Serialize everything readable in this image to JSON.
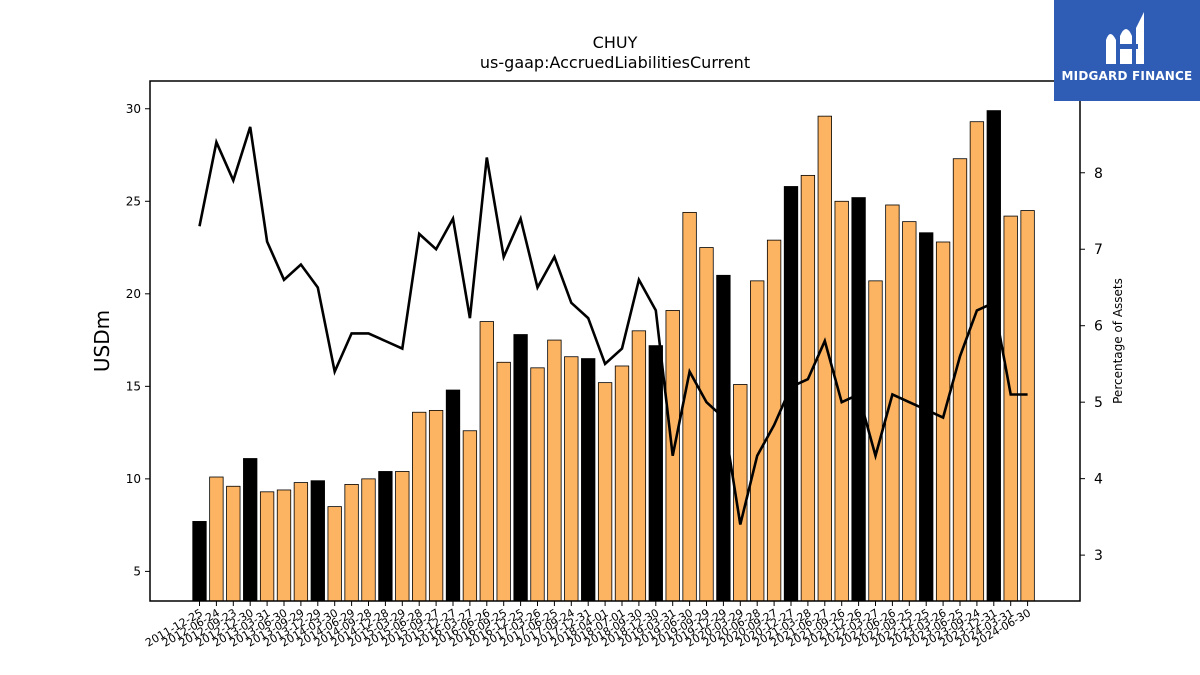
{
  "brand": {
    "name": "MIDGARD FINANCE"
  },
  "colors": {
    "bar_default": "#fdb462",
    "bar_highlight": "#000000",
    "line": "#000000",
    "logo_bg": "#2f5db5"
  },
  "chart_data": {
    "type": "bar",
    "title": "CHUY",
    "subtitle": "us-gaap:AccruedLiabilitiesCurrent",
    "ylabel": "USDm",
    "y2label": "Percentage of Assets",
    "ylim": [
      3.4,
      31.5
    ],
    "y2lim": [
      2.4,
      9.2
    ],
    "yticks": [
      5,
      10,
      15,
      20,
      25,
      30
    ],
    "y2ticks": [
      3,
      4,
      5,
      6,
      7,
      8
    ],
    "categories": [
      "2011-12-25",
      "2012-06-24",
      "2012-09-23",
      "2012-12-30",
      "2013-03-31",
      "2013-06-30",
      "2013-09-29",
      "2013-12-29",
      "2014-03-30",
      "2014-06-29",
      "2014-09-28",
      "2014-12-28",
      "2015-03-29",
      "2015-06-28",
      "2015-09-27",
      "2015-12-27",
      "2016-03-27",
      "2016-06-26",
      "2016-09-25",
      "2016-12-25",
      "2017-03-26",
      "2017-06-25",
      "2017-09-24",
      "2017-12-31",
      "2018-04-01",
      "2018-07-01",
      "2018-09-30",
      "2018-12-30",
      "2019-03-31",
      "2019-06-30",
      "2019-09-29",
      "2019-12-29",
      "2020-03-29",
      "2020-06-28",
      "2020-09-27",
      "2020-12-27",
      "2021-03-28",
      "2021-06-27",
      "2021-09-26",
      "2021-12-26",
      "2022-03-27",
      "2022-06-26",
      "2022-09-25",
      "2022-12-25",
      "2023-03-26",
      "2023-06-25",
      "2023-09-24",
      "2023-12-31",
      "2024-03-31",
      "2024-06-30"
    ],
    "series": [
      {
        "type": "bar",
        "values": [
          7.7,
          10.1,
          9.6,
          11.1,
          9.3,
          9.4,
          9.8,
          9.9,
          8.5,
          9.7,
          10.0,
          10.4,
          10.4,
          13.6,
          13.7,
          14.8,
          12.6,
          18.5,
          16.3,
          17.8,
          16.0,
          17.5,
          16.6,
          16.5,
          15.2,
          16.1,
          18.0,
          17.2,
          19.1,
          24.4,
          22.5,
          21.0,
          15.1,
          20.7,
          22.9,
          25.8,
          26.4,
          29.6,
          25.0,
          25.2,
          20.7,
          24.8,
          23.9,
          23.3,
          22.8,
          27.3,
          29.3,
          29.9,
          24.2,
          24.5
        ],
        "highlight": [
          true,
          false,
          false,
          true,
          false,
          false,
          false,
          true,
          false,
          false,
          false,
          true,
          false,
          false,
          false,
          true,
          false,
          false,
          false,
          true,
          false,
          false,
          false,
          true,
          false,
          false,
          false,
          true,
          false,
          false,
          false,
          true,
          false,
          false,
          false,
          true,
          false,
          false,
          false,
          true,
          false,
          false,
          false,
          true,
          false,
          false,
          false,
          true,
          false,
          false
        ]
      },
      {
        "type": "line",
        "axis": "right",
        "values": [
          7.3,
          8.4,
          7.9,
          8.6,
          7.1,
          6.6,
          6.8,
          6.5,
          5.4,
          5.9,
          5.9,
          5.8,
          5.7,
          7.2,
          7.0,
          7.4,
          6.1,
          8.2,
          6.9,
          7.4,
          6.5,
          6.9,
          6.3,
          6.1,
          5.5,
          5.7,
          6.6,
          6.2,
          4.3,
          5.4,
          5.0,
          4.8,
          3.4,
          4.3,
          4.7,
          5.2,
          5.3,
          5.8,
          5.0,
          5.1,
          4.3,
          5.1,
          5.0,
          4.9,
          4.8,
          5.6,
          6.2,
          6.3,
          5.1,
          5.1
        ]
      }
    ]
  }
}
